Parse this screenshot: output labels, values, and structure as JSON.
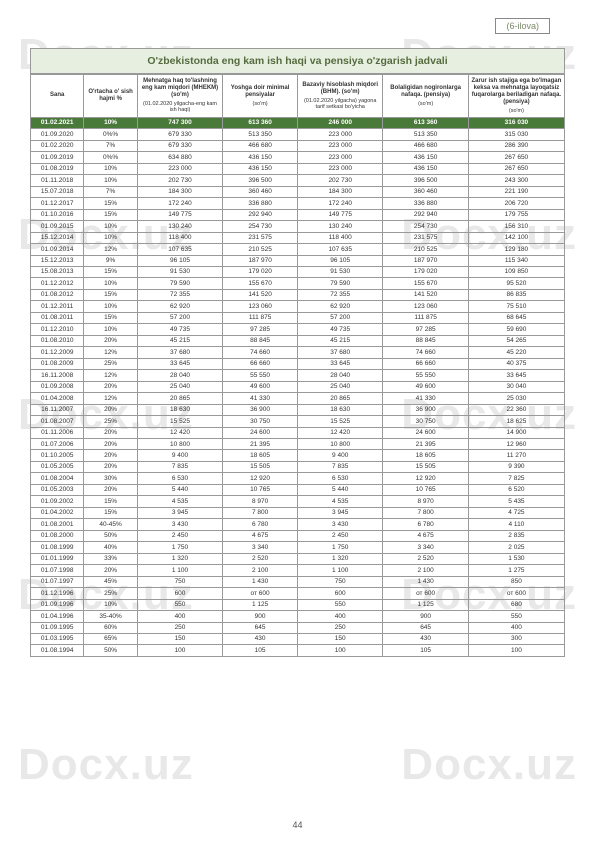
{
  "watermark": "Docx.uz",
  "annex_label": "(6-ilova)",
  "page_number": "44",
  "table": {
    "title": "O'zbekistonda eng kam ish haqi va pensiya o'zgarish jadvali",
    "headers": {
      "sana": "Sana",
      "pct": "O'rtacha o' sish hajmi %",
      "c1_main": "Mehnatga haq to'lashning eng kam miqdori (MHEKM) (so'm)",
      "c1_sub": "(01.02.2020 yilgacha-eng kam ish haqi)",
      "c2_main": "Yoshga doir minimal pensiyalar",
      "c2_sub": "(so'm)",
      "c3_main": "Bazaviy hisoblash miqdori (BHM). (so'm)",
      "c3_sub": "(01.02.2020 yilgacha) yagona tarif setkasi bo'yicha",
      "c4_main": "Bolaligidan nogironlarga nafaqa. (pensiya)",
      "c4_sub": "(so'm)",
      "c5_main": "Zarur ish stajiga ega bo'lmagan keksa va mehnatga layoqatsiz fuqarolarga beriladigan nafaqa. (pensiya)",
      "c5_sub": "(so'm)"
    },
    "highlight_row": [
      "01.02.2021",
      "10%",
      "747 300",
      "613 360",
      "246 000",
      "613 360",
      "316 030"
    ],
    "rows": [
      [
        "01.09.2020",
        "0%%",
        "679 330",
        "513 350",
        "223 000",
        "513 350",
        "315 030"
      ],
      [
        "01.02.2020",
        "7%",
        "679 330",
        "466 680",
        "223 000",
        "466 680",
        "286 390"
      ],
      [
        "01.09.2019",
        "0%%",
        "634 880",
        "436 150",
        "223 000",
        "436 150",
        "267 650"
      ],
      [
        "01.08.2019",
        "10%",
        "223 000",
        "436 150",
        "223 000",
        "436 150",
        "267 650"
      ],
      [
        "01.11.2018",
        "10%",
        "202 730",
        "396 500",
        "202 730",
        "396 500",
        "243 300"
      ],
      [
        "15.07.2018",
        "7%",
        "184 300",
        "360 460",
        "184 300",
        "360 460",
        "221 190"
      ],
      [
        "01.12.2017",
        "15%",
        "172 240",
        "336 880",
        "172 240",
        "336 880",
        "206 720"
      ],
      [
        "01.10.2016",
        "15%",
        "149 775",
        "292 940",
        "149 775",
        "292 940",
        "179 755"
      ],
      [
        "01.09.2015",
        "10%",
        "130 240",
        "254 730",
        "130 240",
        "254 730",
        "156 310"
      ],
      [
        "15.12.2014",
        "10%",
        "118 400",
        "231 575",
        "118 400",
        "231 575",
        "142 100"
      ],
      [
        "01.09.2014",
        "12%",
        "107 635",
        "210 525",
        "107 635",
        "210 525",
        "129 180"
      ],
      [
        "15.12.2013",
        "9%",
        "96 105",
        "187 970",
        "96 105",
        "187 970",
        "115 340"
      ],
      [
        "15.08.2013",
        "15%",
        "91 530",
        "179 020",
        "91 530",
        "179 020",
        "109 850"
      ],
      [
        "01.12.2012",
        "10%",
        "79 590",
        "155 670",
        "79 590",
        "155 670",
        "95 520"
      ],
      [
        "01.08.2012",
        "15%",
        "72 355",
        "141 520",
        "72 355",
        "141 520",
        "86 835"
      ],
      [
        "01.12.2011",
        "10%",
        "62 920",
        "123 060",
        "62 920",
        "123 060",
        "75 510"
      ],
      [
        "01.08.2011",
        "15%",
        "57 200",
        "111 875",
        "57 200",
        "111 875",
        "68 645"
      ],
      [
        "01.12.2010",
        "10%",
        "49 735",
        "97 285",
        "49 735",
        "97 285",
        "59 690"
      ],
      [
        "01.08.2010",
        "20%",
        "45 215",
        "88 845",
        "45 215",
        "88 845",
        "54 265"
      ],
      [
        "01.12.2009",
        "12%",
        "37 680",
        "74 660",
        "37 680",
        "74 660",
        "45 220"
      ],
      [
        "01.08.2009",
        "25%",
        "33 645",
        "66 660",
        "33 645",
        "66 660",
        "40 375"
      ],
      [
        "16.11.2008",
        "12%",
        "28 040",
        "55 550",
        "28 040",
        "55 550",
        "33 645"
      ],
      [
        "01.09.2008",
        "20%",
        "25 040",
        "49 600",
        "25 040",
        "49 600",
        "30 040"
      ],
      [
        "01.04.2008",
        "12%",
        "20 865",
        "41 330",
        "20 865",
        "41 330",
        "25 030"
      ],
      [
        "16.11.2007",
        "20%",
        "18 630",
        "36 900",
        "18 630",
        "36 900",
        "22 360"
      ],
      [
        "01.08.2007",
        "25%",
        "15 525",
        "30 750",
        "15 525",
        "30 750",
        "18 625"
      ],
      [
        "01.11.2006",
        "20%",
        "12 420",
        "24 600",
        "12 420",
        "24 600",
        "14 900"
      ],
      [
        "01.07.2006",
        "20%",
        "10 800",
        "21 395",
        "10 800",
        "21 395",
        "12 960"
      ],
      [
        "01.10.2005",
        "20%",
        "9 400",
        "18 605",
        "9 400",
        "18 605",
        "11 270"
      ],
      [
        "01.05.2005",
        "20%",
        "7 835",
        "15 505",
        "7 835",
        "15 505",
        "9 390"
      ],
      [
        "01.08.2004",
        "30%",
        "6 530",
        "12 920",
        "6 530",
        "12 920",
        "7 825"
      ],
      [
        "01.05.2003",
        "20%",
        "5 440",
        "10 765",
        "5 440",
        "10 765",
        "6 520"
      ],
      [
        "01.09.2002",
        "15%",
        "4 535",
        "8 970",
        "4 535",
        "8 970",
        "5 435"
      ],
      [
        "01.04.2002",
        "15%",
        "3 945",
        "7 800",
        "3 945",
        "7 800",
        "4 725"
      ],
      [
        "01.08.2001",
        "40-45%",
        "3 430",
        "6 780",
        "3 430",
        "6 780",
        "4 110"
      ],
      [
        "01.08.2000",
        "50%",
        "2 450",
        "4 675",
        "2 450",
        "4 675",
        "2 835"
      ],
      [
        "01.08.1999",
        "40%",
        "1 750",
        "3 340",
        "1 750",
        "3 340",
        "2 025"
      ],
      [
        "01.01.1999",
        "33%",
        "1 320",
        "2 520",
        "1 320",
        "2 520",
        "1 530"
      ],
      [
        "01.07.1998",
        "20%",
        "1 100",
        "2 100",
        "1 100",
        "2 100",
        "1 275"
      ],
      [
        "01.07.1997",
        "45%",
        "750",
        "1 430",
        "750",
        "1 430",
        "850"
      ],
      [
        "01.12.1996",
        "25%",
        "600",
        "от 600",
        "600",
        "от 600",
        "от 600"
      ],
      [
        "01.09.1996",
        "10%",
        "550",
        "1 125",
        "550",
        "1 125",
        "680"
      ],
      [
        "01.04.1996",
        "35-40%",
        "400",
        "900",
        "400",
        "900",
        "550"
      ],
      [
        "01.09.1995",
        "60%",
        "250",
        "645",
        "250",
        "645",
        "400"
      ],
      [
        "01.03.1995",
        "65%",
        "150",
        "430",
        "150",
        "430",
        "300"
      ],
      [
        "01.08.1994",
        "50%",
        "100",
        "105",
        "100",
        "105",
        "100"
      ]
    ]
  },
  "colors": {
    "title_bg": "#e7f0e0",
    "title_text": "#556b3f",
    "highlight_bg": "#4a7a3a",
    "highlight_text": "#ffffff",
    "border": "#999999",
    "watermark": "#e8e8e8"
  }
}
